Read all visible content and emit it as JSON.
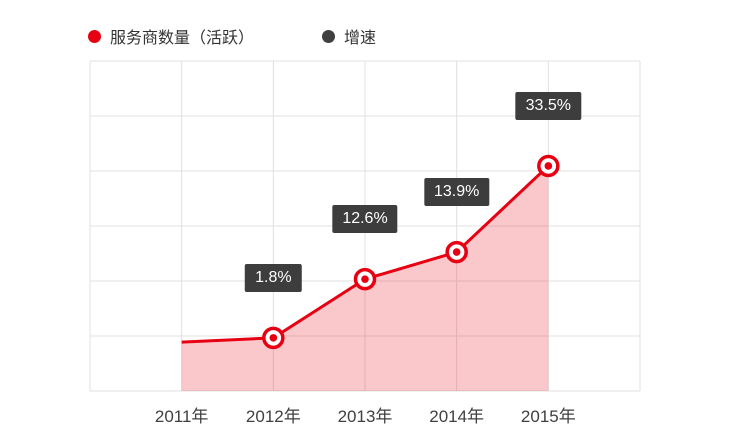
{
  "legend": {
    "items": [
      {
        "label": "服务商数量（活跃）",
        "color": "#e60012",
        "icon": "red-dot-icon"
      },
      {
        "label": "增速",
        "color": "#3f3f3f",
        "icon": "dark-dot-icon"
      }
    ]
  },
  "chart_data": {
    "type": "area",
    "title": "",
    "xlabel": "",
    "ylabel": "",
    "categories": [
      "2011年",
      "2012年",
      "2013年",
      "2014年",
      "2015年"
    ],
    "series": [
      {
        "name": "服务商数量（活跃）",
        "type": "line",
        "color": "#e60012",
        "fill_color": "rgba(230,0,18,0.22)",
        "y_norm": [
          0.148,
          0.161,
          0.339,
          0.421,
          0.682
        ],
        "markers": [
          false,
          true,
          true,
          true,
          true
        ]
      },
      {
        "name": "增速",
        "type": "labels",
        "color": "#3f3f3f",
        "values_pct": [
          null,
          1.8,
          12.6,
          13.9,
          33.5
        ],
        "labels": [
          null,
          "1.8%",
          "12.6%",
          "13.9%",
          "33.5%"
        ]
      }
    ],
    "grid": {
      "show": true,
      "rows": 6,
      "cols": 6,
      "color": "#e0e0e0"
    },
    "legend_position": "top-left",
    "y_axis_visible": false
  },
  "styles": {
    "background": "#ffffff",
    "accent_red": "#e60012",
    "label_box_bg": "#3d3d3d",
    "label_box_text": "#ffffff",
    "axis_text_color": "#404040",
    "grid_color": "#e0e0e0"
  }
}
